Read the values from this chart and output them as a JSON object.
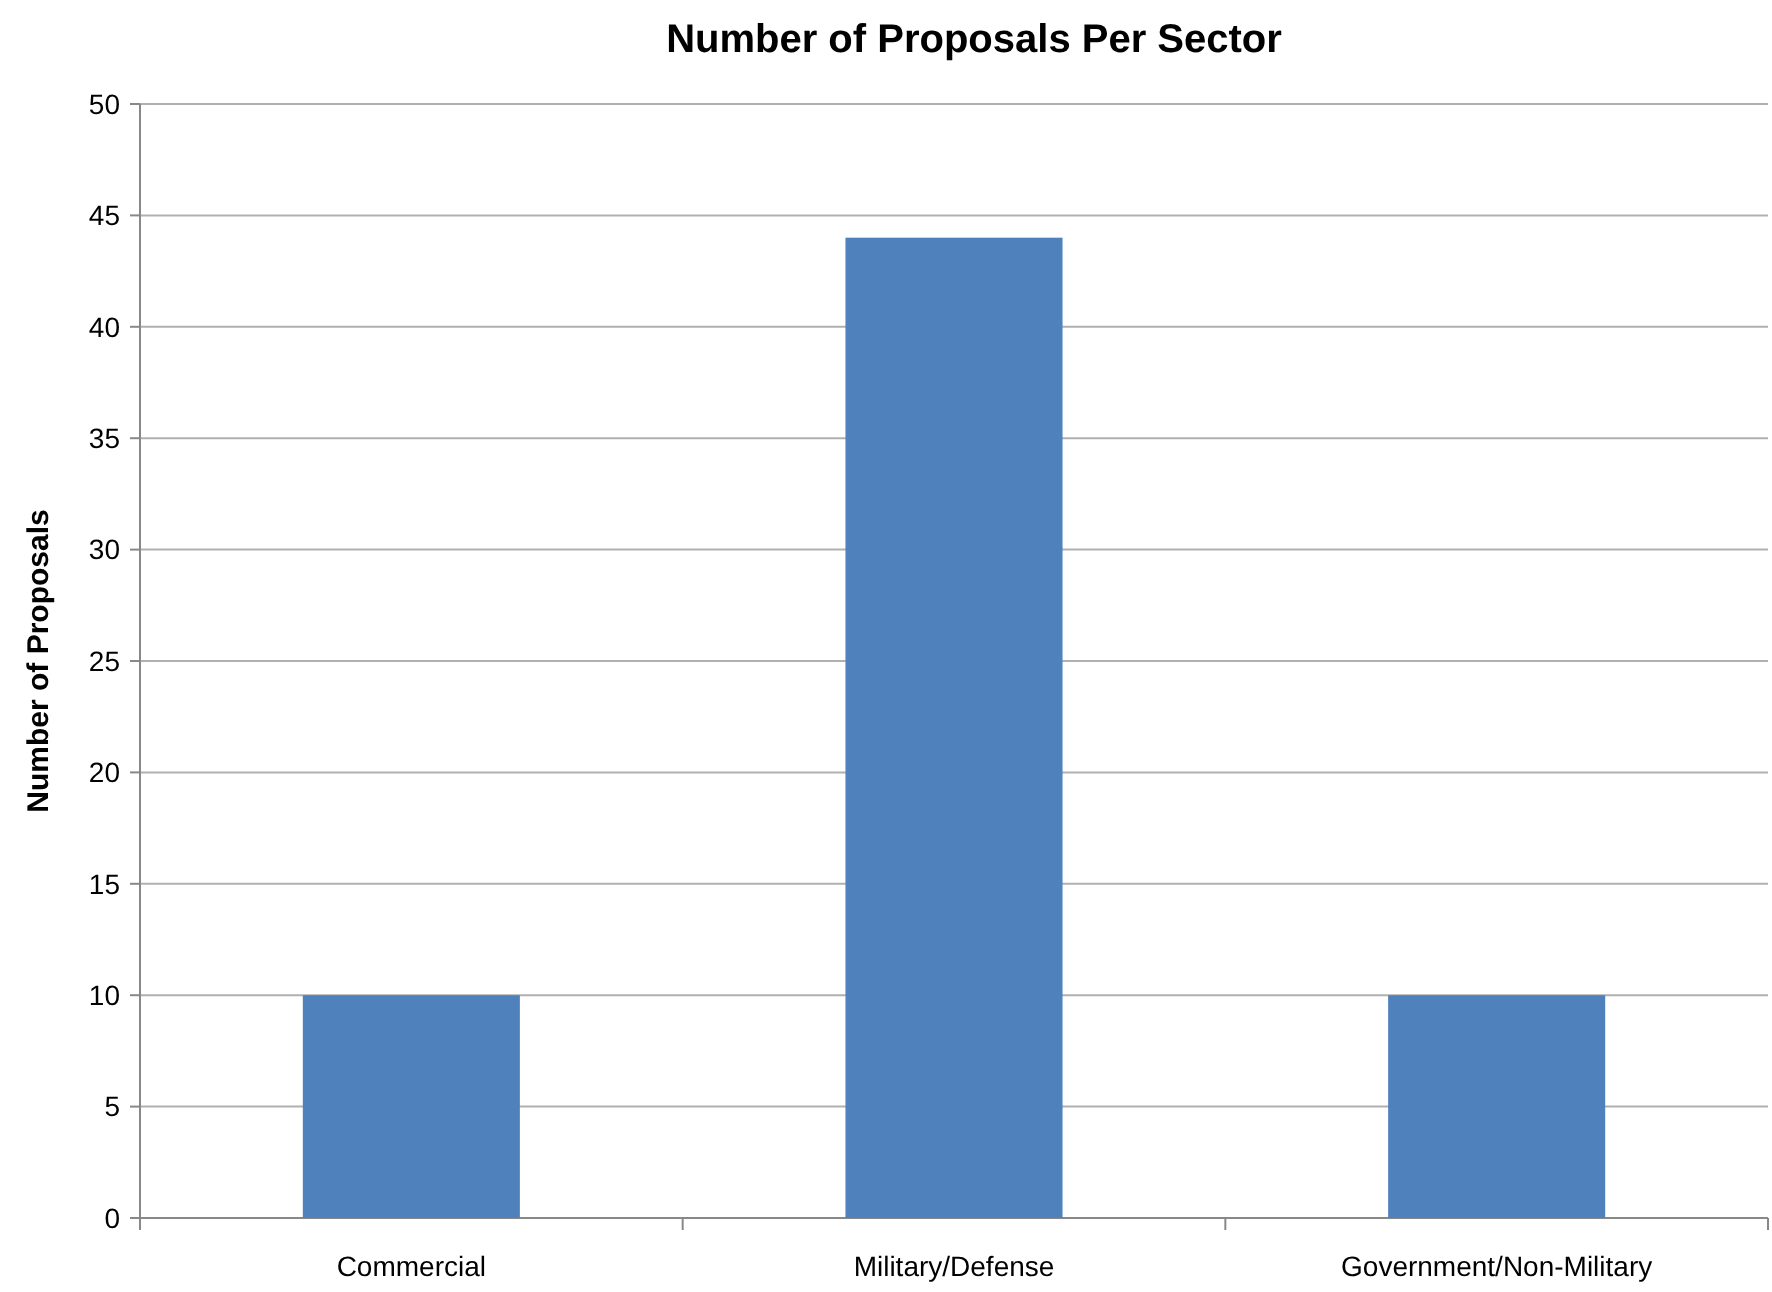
{
  "chart_data": {
    "type": "bar",
    "title": "Number of Proposals Per Sector",
    "ylabel": "Number of Proposals",
    "categories": [
      "Commercial",
      "Military/Defense",
      "Government/Non-Military"
    ],
    "values": [
      10,
      44,
      10
    ],
    "color": "#4f81bd",
    "ylim": [
      0,
      50
    ],
    "yticks": [
      0,
      5,
      10,
      15,
      20,
      25,
      30,
      35,
      40,
      45,
      50
    ],
    "grid": "y"
  }
}
